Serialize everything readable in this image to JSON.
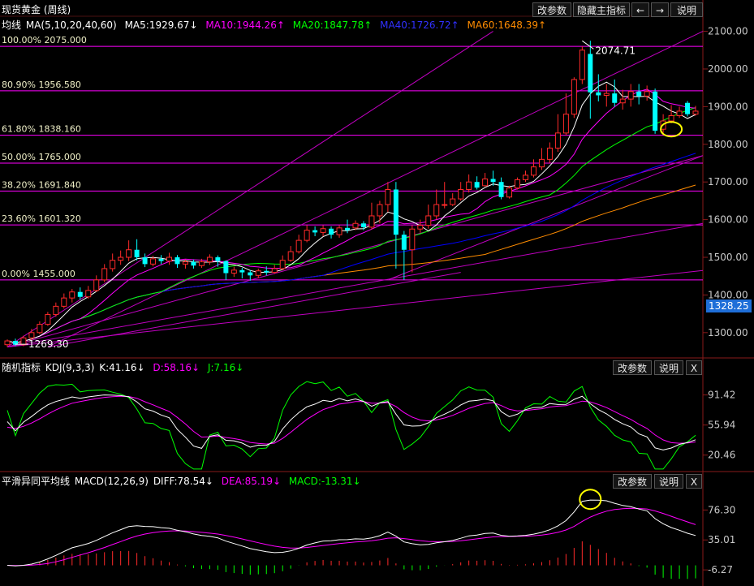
{
  "window": {
    "title": "现货黄金 (周线)"
  },
  "toolbar": {
    "params_label": "改参数",
    "hide_label": "隐藏主指标",
    "prev_label": "←",
    "next_label": "→",
    "help_label": "说明"
  },
  "sub_toolbar": {
    "params_label": "改参数",
    "help_label": "说明",
    "close_label": "X"
  },
  "main_legend": {
    "title": "均线",
    "ma": "MA(5,10,20,40,60)",
    "ma5": "MA5:1929.67↓",
    "ma10": "MA10:1944.26↑",
    "ma20": "MA20:1847.78↑",
    "ma40": "MA40:1726.72↑",
    "ma60": "MA60:1648.39↑"
  },
  "kdj_legend": {
    "title": "随机指标",
    "params": "KDJ(9,3,3)",
    "k": "K:41.16↓",
    "d": "D:58.16↓",
    "j": "J:7.16↓"
  },
  "macd_legend": {
    "title": "平滑异同平均线",
    "params": "MACD(12,26,9)",
    "diff": "DIFF:78.54↓",
    "dea": "DEA:85.19↓",
    "macd": "MACD:-13.31↓"
  },
  "current_price": "1328.25",
  "colors": {
    "up": "#ff2a2a",
    "down": "#00ffff",
    "ma5": "#ffffff",
    "ma10": "#ff00ff",
    "ma20": "#00ff00",
    "ma40": "#0000ff",
    "ma60": "#ff8c00",
    "fib": "#ff00ff",
    "grid_text": "#c8c8c8",
    "highlight": "#ffff00"
  },
  "chart_data": [
    {
      "type": "candlestick",
      "panel": "price",
      "y_ticks": [
        2100,
        2000,
        1900,
        1800,
        1700,
        1600,
        1500,
        1400,
        1300
      ],
      "y_tick_labels": [
        "2100.00",
        "2000.00",
        "1900.00",
        "1800.00",
        "1700.00",
        "1600.00",
        "1500.00",
        "1400.00",
        "1300.00"
      ],
      "ylim": [
        1235,
        2140
      ],
      "fib_levels": [
        {
          "label": "100.00% 2075.000",
          "value": 2060
        },
        {
          "label": "80.90% 1956.580",
          "value": 1942
        },
        {
          "label": "61.80% 1838.160",
          "value": 1824
        },
        {
          "label": "50.00% 1765.000",
          "value": 1750
        },
        {
          "label": "38.20% 1691.840",
          "value": 1676
        },
        {
          "label": "23.60% 1601.320",
          "value": 1586
        },
        {
          "label": "0.00% 1455.000",
          "value": 1440
        }
      ],
      "annotations": [
        {
          "text": "2074.71",
          "value": 2074.71
        },
        {
          "text": "1269.30",
          "value": 1269.3
        }
      ],
      "candles": [
        [
          1268,
          1278,
          1262,
          1282
        ],
        [
          1278,
          1268,
          1264,
          1284
        ],
        [
          1268,
          1286,
          1264,
          1292
        ],
        [
          1286,
          1300,
          1280,
          1310
        ],
        [
          1300,
          1322,
          1296,
          1330
        ],
        [
          1322,
          1348,
          1318,
          1355
        ],
        [
          1348,
          1370,
          1342,
          1380
        ],
        [
          1370,
          1392,
          1364,
          1404
        ],
        [
          1392,
          1408,
          1380,
          1416
        ],
        [
          1408,
          1395,
          1388,
          1420
        ],
        [
          1395,
          1412,
          1390,
          1424
        ],
        [
          1412,
          1440,
          1408,
          1452
        ],
        [
          1440,
          1470,
          1434,
          1482
        ],
        [
          1470,
          1492,
          1462,
          1510
        ],
        [
          1492,
          1500,
          1480,
          1518
        ],
        [
          1500,
          1520,
          1490,
          1545
        ],
        [
          1520,
          1500,
          1492,
          1548
        ],
        [
          1500,
          1482,
          1474,
          1510
        ],
        [
          1482,
          1496,
          1476,
          1504
        ],
        [
          1496,
          1490,
          1482,
          1506
        ],
        [
          1490,
          1500,
          1480,
          1512
        ],
        [
          1500,
          1482,
          1472,
          1506
        ],
        [
          1482,
          1488,
          1470,
          1494
        ],
        [
          1488,
          1478,
          1470,
          1494
        ],
        [
          1478,
          1488,
          1472,
          1496
        ],
        [
          1488,
          1500,
          1480,
          1508
        ],
        [
          1500,
          1490,
          1475,
          1505
        ],
        [
          1490,
          1458,
          1440,
          1492
        ],
        [
          1458,
          1466,
          1448,
          1475
        ],
        [
          1466,
          1460,
          1444,
          1472
        ],
        [
          1460,
          1452,
          1438,
          1466
        ],
        [
          1452,
          1464,
          1444,
          1470
        ],
        [
          1464,
          1460,
          1452,
          1476
        ],
        [
          1460,
          1470,
          1456,
          1480
        ],
        [
          1470,
          1492,
          1466,
          1505
        ],
        [
          1492,
          1515,
          1488,
          1530
        ],
        [
          1515,
          1545,
          1510,
          1560
        ],
        [
          1545,
          1572,
          1540,
          1585
        ],
        [
          1572,
          1566,
          1556,
          1582
        ],
        [
          1566,
          1576,
          1556,
          1585
        ],
        [
          1576,
          1560,
          1550,
          1582
        ],
        [
          1560,
          1578,
          1552,
          1585
        ],
        [
          1578,
          1572,
          1564,
          1600
        ],
        [
          1578,
          1590,
          1572,
          1598
        ],
        [
          1590,
          1580,
          1572,
          1596
        ],
        [
          1580,
          1610,
          1574,
          1645
        ],
        [
          1610,
          1640,
          1590,
          1650
        ],
        [
          1640,
          1680,
          1620,
          1700
        ],
        [
          1680,
          1560,
          1470,
          1700
        ],
        [
          1560,
          1520,
          1440,
          1570
        ],
        [
          1520,
          1575,
          1460,
          1585
        ],
        [
          1575,
          1585,
          1565,
          1600
        ],
        [
          1585,
          1610,
          1576,
          1640
        ],
        [
          1610,
          1640,
          1600,
          1680
        ],
        [
          1640,
          1640,
          1630,
          1700
        ],
        [
          1640,
          1655,
          1636,
          1670
        ],
        [
          1655,
          1680,
          1650,
          1700
        ],
        [
          1680,
          1700,
          1672,
          1720
        ],
        [
          1700,
          1685,
          1680,
          1715
        ],
        [
          1690,
          1708,
          1688,
          1724
        ],
        [
          1708,
          1700,
          1690,
          1730
        ],
        [
          1700,
          1660,
          1654,
          1712
        ],
        [
          1660,
          1684,
          1656,
          1690
        ],
        [
          1684,
          1706,
          1680,
          1712
        ],
        [
          1706,
          1718,
          1700,
          1730
        ],
        [
          1718,
          1740,
          1712,
          1760
        ],
        [
          1740,
          1760,
          1732,
          1790
        ],
        [
          1760,
          1790,
          1750,
          1805
        ],
        [
          1790,
          1830,
          1780,
          1880
        ],
        [
          1830,
          1880,
          1824,
          1935
        ],
        [
          1880,
          1972,
          1870,
          1978
        ],
        [
          1972,
          2050,
          1960,
          2060
        ],
        [
          2040,
          1938,
          1868,
          2075
        ],
        [
          1938,
          1930,
          1914,
          1986
        ],
        [
          1930,
          1935,
          1900,
          1960
        ],
        [
          1935,
          1910,
          1900,
          1972
        ],
        [
          1910,
          1920,
          1892,
          1945
        ],
        [
          1920,
          1940,
          1900,
          1960
        ],
        [
          1940,
          1928,
          1906,
          1960
        ],
        [
          1928,
          1940,
          1916,
          1956
        ],
        [
          1940,
          1836,
          1828,
          1948
        ],
        [
          1840,
          1862,
          1830,
          1880
        ],
        [
          1862,
          1876,
          1856,
          1904
        ],
        [
          1876,
          1888,
          1870,
          1900
        ],
        [
          1910,
          1880,
          1874,
          1915
        ],
        [
          1880,
          1888,
          1876,
          1902
        ]
      ],
      "x_first": 1,
      "x_last": 86,
      "highlight_ellipse": {
        "bar": 82,
        "value": 1840
      }
    },
    {
      "type": "line",
      "panel": "kdj",
      "y_ticks": [
        91.42,
        55.94,
        20.46
      ],
      "y_tick_labels": [
        "91.42",
        "55.94",
        "20.46"
      ],
      "ylim": [
        2,
        115
      ]
    },
    {
      "type": "bar",
      "panel": "macd",
      "y_ticks": [
        76.3,
        35.01,
        -6.27
      ],
      "y_tick_labels": [
        "76.30",
        "35.01",
        "-6.27"
      ],
      "ylim": [
        -24,
        108
      ],
      "highlight_ellipse": {
        "bar": 72,
        "value": 91
      }
    }
  ]
}
